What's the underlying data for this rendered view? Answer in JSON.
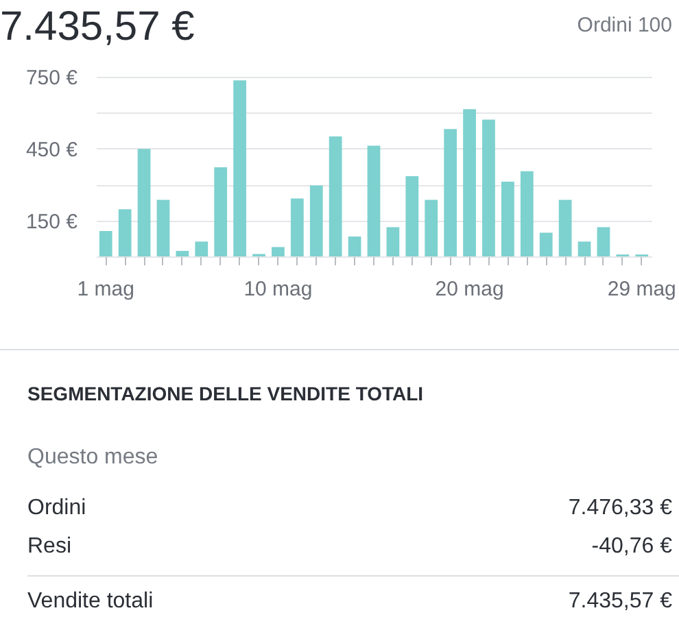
{
  "chart_data": {
    "type": "bar",
    "title": "7.435,57 €",
    "subtitle": "Ordini 100",
    "categories": [
      "1 mag",
      null,
      null,
      null,
      null,
      null,
      null,
      null,
      null,
      "10 mag",
      null,
      null,
      null,
      null,
      null,
      null,
      null,
      null,
      null,
      "20 mag",
      null,
      null,
      null,
      null,
      null,
      null,
      null,
      null,
      "29 mag"
    ],
    "values": [
      106,
      197,
      449,
      236,
      23,
      62,
      372,
      735,
      10,
      39,
      242,
      296,
      501,
      83,
      462,
      122,
      335,
      236,
      532,
      615,
      571,
      312,
      356,
      99,
      236,
      62,
      122,
      8,
      8
    ],
    "color": "#7dd1cf",
    "ylim": [
      0,
      750
    ],
    "yticks": [
      {
        "value": 0,
        "label": null
      },
      {
        "value": 150,
        "label": "150 €"
      },
      {
        "value": 300,
        "label": null
      },
      {
        "value": 450,
        "label": "450 €"
      },
      {
        "value": 600,
        "label": null
      },
      {
        "value": 750,
        "label": "750 €"
      }
    ],
    "grid": "y",
    "annotations": [
      "SEGMENTAZIONE DELLE VENDITE TOTALI",
      "Questo mese",
      "Ordini",
      "7.476,33 €",
      "Resi",
      "-40,76 €",
      "Vendite totali",
      "7.435,57 €"
    ]
  }
}
